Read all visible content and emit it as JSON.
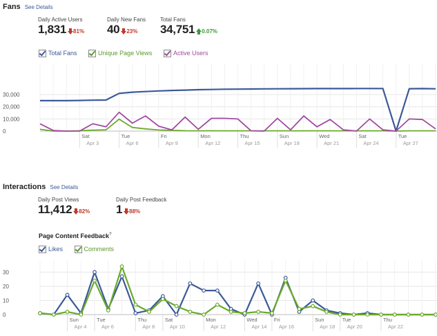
{
  "fans": {
    "title": "Fans",
    "see_details": "See Details",
    "metrics": [
      {
        "label": "Daily Active Users",
        "value": "1,831",
        "change": "81%",
        "direction": "down"
      },
      {
        "label": "Daily New Fans",
        "value": "40",
        "change": "23%",
        "direction": "down"
      },
      {
        "label": "Total Fans",
        "value": "34,751",
        "change": "0.07%",
        "direction": "up"
      }
    ],
    "legend": [
      "Total Fans",
      "Unique Page Views",
      "Active Users"
    ]
  },
  "interactions": {
    "title": "Interactions",
    "see_details": "See Details",
    "metrics": [
      {
        "label": "Daily Post Views",
        "value": "11,412",
        "change": "82%",
        "direction": "down"
      },
      {
        "label": "Daily Post Feedback",
        "value": "1",
        "change": "88%",
        "direction": "down"
      }
    ],
    "subtitle": "Page Content Feedback",
    "subtitle_marker": "?",
    "legend": [
      "Likes",
      "Comments"
    ]
  },
  "colors": {
    "blue": "#3b5998",
    "green": "#6aaa2a",
    "purple": "#a04aa0",
    "grid": "#e6e6e6"
  },
  "chart_data": [
    {
      "type": "line",
      "ylim": [
        0,
        55000
      ],
      "yticks": [
        0,
        10000,
        20000,
        30000
      ],
      "ytick_labels": [
        "0",
        "10,000",
        "20,000",
        "30,000"
      ],
      "x_count": 31,
      "x_ticks": [
        {
          "i": 3,
          "day": "Sat",
          "date": "Apr 3"
        },
        {
          "i": 6,
          "day": "Tue",
          "date": "Apr 6"
        },
        {
          "i": 9,
          "day": "Fri",
          "date": "Apr 9"
        },
        {
          "i": 12,
          "day": "Mon",
          "date": "Apr 12"
        },
        {
          "i": 15,
          "day": "Thu",
          "date": "Apr 15"
        },
        {
          "i": 18,
          "day": "Sun",
          "date": "Apr 18"
        },
        {
          "i": 21,
          "day": "Wed",
          "date": "Apr 21"
        },
        {
          "i": 24,
          "day": "Sat",
          "date": "Apr 24"
        },
        {
          "i": 27,
          "day": "Tue",
          "date": "Apr 27"
        }
      ],
      "series": [
        {
          "name": "Total Fans",
          "color": "#3b5998",
          "width": 2.2,
          "values": [
            25000,
            25000,
            25000,
            25200,
            25400,
            25500,
            31000,
            32000,
            32500,
            33000,
            33400,
            33700,
            34000,
            34200,
            34400,
            34500,
            34600,
            34700,
            34750,
            34800,
            34850,
            34900,
            34900,
            34950,
            35000,
            35000,
            35000,
            0,
            34800,
            34900,
            34750
          ]
        },
        {
          "name": "Unique Page Views",
          "color": "#6aaa2a",
          "width": 1.8,
          "values": [
            1500,
            0,
            0,
            300,
            800,
            1000,
            9800,
            3000,
            1800,
            900,
            600,
            300,
            200,
            300,
            200,
            200,
            200,
            200,
            200,
            200,
            200,
            200,
            200,
            200,
            200,
            200,
            200,
            0,
            200,
            200,
            200
          ]
        },
        {
          "name": "Active Users",
          "color": "#a04aa0",
          "width": 1.8,
          "values": [
            6000,
            500,
            0,
            0,
            6000,
            3500,
            15500,
            6500,
            12500,
            4000,
            1000,
            11500,
            1500,
            10500,
            10500,
            10000,
            200,
            0,
            10500,
            1000,
            12500,
            3500,
            9500,
            1000,
            0,
            10000,
            1000,
            0,
            10000,
            9500,
            1800
          ]
        }
      ]
    },
    {
      "type": "line",
      "ylim": [
        0,
        38
      ],
      "yticks": [
        0,
        10,
        20,
        30
      ],
      "ytick_labels": [
        "0",
        "10",
        "20",
        "30"
      ],
      "x_count": 30,
      "x_ticks": [
        {
          "i": 2,
          "day": "Sun",
          "date": "Apr 4"
        },
        {
          "i": 4,
          "day": "Tue",
          "date": "Apr 6"
        },
        {
          "i": 7,
          "day": "Thu",
          "date": "Apr 8"
        },
        {
          "i": 9,
          "day": "Sat",
          "date": "Apr 10"
        },
        {
          "i": 12,
          "day": "Mon",
          "date": "Apr 12"
        },
        {
          "i": 15,
          "day": "Wed",
          "date": "Apr 14"
        },
        {
          "i": 17,
          "day": "Fri",
          "date": "Apr 16"
        },
        {
          "i": 20,
          "day": "Sun",
          "date": "Apr 18"
        },
        {
          "i": 22,
          "day": "Tue",
          "date": "Apr 20"
        },
        {
          "i": 25,
          "day": "Thu",
          "date": "Apr 22"
        }
      ],
      "series": [
        {
          "name": "Likes",
          "color": "#3b5998",
          "width": 2.2,
          "values": [
            1,
            0,
            14,
            1,
            30,
            4,
            27,
            1,
            3,
            13,
            0,
            22,
            17,
            17,
            4,
            0,
            22,
            0,
            26,
            2,
            10,
            3,
            1,
            0,
            1,
            0,
            0,
            0,
            0,
            0
          ]
        },
        {
          "name": "Comments",
          "color": "#6aaa2a",
          "width": 2.2,
          "values": [
            1,
            0,
            2,
            0,
            24,
            3,
            34,
            7,
            2,
            11,
            6,
            2,
            0,
            7,
            2,
            1,
            2,
            1,
            24,
            4,
            6,
            2,
            0,
            0,
            0,
            0,
            0,
            0,
            0,
            0
          ]
        }
      ]
    }
  ]
}
